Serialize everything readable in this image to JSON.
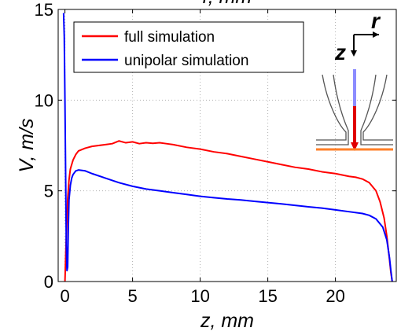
{
  "chart_data": {
    "type": "line",
    "title": "",
    "top_label": "r, mm",
    "xlabel": "z, mm",
    "ylabel": "V, m/s",
    "xlim": [
      -0.5,
      24.5
    ],
    "ylim": [
      0,
      15
    ],
    "xticks": [
      "0",
      "5",
      "10",
      "15",
      "20"
    ],
    "xtick_values": [
      0,
      5,
      10,
      15,
      20
    ],
    "yticks": [
      "0",
      "5",
      "10",
      "15"
    ],
    "ytick_values": [
      0,
      5,
      10,
      15
    ],
    "grid": true,
    "legend_position": "top-left",
    "series": [
      {
        "name": "full simulation",
        "color": "#ff0000",
        "x": [
          0.0,
          0.1,
          0.2,
          0.3,
          0.4,
          0.6,
          0.8,
          1.0,
          1.5,
          2.0,
          2.5,
          3.0,
          3.5,
          4.0,
          4.5,
          5.0,
          5.5,
          6.0,
          6.5,
          7.0,
          7.5,
          8.0,
          9.0,
          10.0,
          11.0,
          12.0,
          13.0,
          14.0,
          15.0,
          16.0,
          17.0,
          18.0,
          19.0,
          20.0,
          21.0,
          21.5,
          22.0,
          22.5,
          23.0,
          23.3,
          23.6,
          23.8,
          24.0,
          24.1,
          24.2
        ],
        "y": [
          0.0,
          2.5,
          4.5,
          5.6,
          6.2,
          6.7,
          7.0,
          7.2,
          7.35,
          7.45,
          7.5,
          7.55,
          7.6,
          7.75,
          7.65,
          7.7,
          7.6,
          7.65,
          7.62,
          7.65,
          7.6,
          7.55,
          7.4,
          7.3,
          7.15,
          7.05,
          6.9,
          6.75,
          6.6,
          6.45,
          6.3,
          6.2,
          6.05,
          5.95,
          5.8,
          5.75,
          5.65,
          5.45,
          5.0,
          4.4,
          3.5,
          2.5,
          1.2,
          0.5,
          0.0
        ]
      },
      {
        "name": "unipolar simulation",
        "color": "#0000ff",
        "x": [
          -0.1,
          -0.05,
          0.0,
          0.05,
          0.1,
          0.15,
          0.2,
          0.25,
          0.3,
          0.4,
          0.5,
          0.6,
          0.8,
          1.0,
          1.5,
          2.0,
          3.0,
          4.0,
          5.0,
          6.0,
          7.0,
          8.0,
          9.0,
          10.0,
          11.0,
          12.0,
          13.0,
          14.0,
          15.0,
          16.0,
          17.0,
          18.0,
          19.0,
          20.0,
          21.0,
          22.0,
          22.5,
          23.0,
          23.5,
          23.8,
          24.0,
          24.1,
          24.2
        ],
        "y": [
          14.8,
          13.5,
          10.0,
          6.0,
          2.0,
          0.6,
          0.8,
          3.0,
          4.5,
          5.3,
          5.7,
          5.9,
          6.1,
          6.15,
          6.1,
          5.95,
          5.7,
          5.45,
          5.25,
          5.1,
          5.0,
          4.9,
          4.8,
          4.7,
          4.62,
          4.55,
          4.5,
          4.42,
          4.35,
          4.28,
          4.2,
          4.12,
          4.05,
          3.95,
          3.85,
          3.75,
          3.65,
          3.45,
          3.0,
          2.3,
          1.3,
          0.6,
          0.0
        ]
      }
    ]
  },
  "inset": {
    "axis_r_label": "r",
    "axis_z_label": "z",
    "needle_upper_color": "#8c8cff",
    "needle_lower_color": "#e00000",
    "plate_color": "#ff7f27"
  }
}
